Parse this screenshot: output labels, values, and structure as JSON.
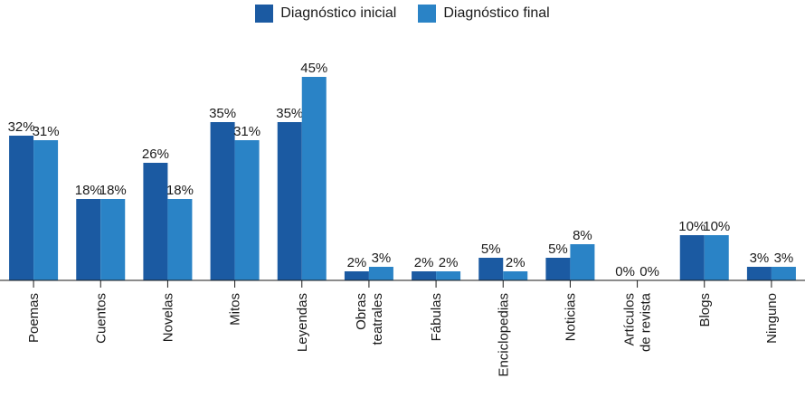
{
  "colors": {
    "initial": "#1b5aa2",
    "final": "#2a83c6",
    "axis": "#1a1a1a"
  },
  "legend": {
    "initial_label": "Diagnóstico inicial",
    "final_label": "Diagnóstico final"
  },
  "chart_data": {
    "type": "bar",
    "categories": [
      [
        "Poemas"
      ],
      [
        "Cuentos"
      ],
      [
        "Novelas"
      ],
      [
        "Mitos"
      ],
      [
        "Leyendas"
      ],
      [
        "Obras",
        "teatrales"
      ],
      [
        "Fábulas"
      ],
      [
        "Enciclopedias"
      ],
      [
        "Noticias"
      ],
      [
        "Artículos",
        "de revista"
      ],
      [
        "Blogs"
      ],
      [
        "Ninguno"
      ]
    ],
    "series": [
      {
        "name": "Diagnóstico inicial",
        "values": [
          32,
          18,
          26,
          35,
          35,
          2,
          2,
          5,
          5,
          0,
          10,
          3
        ]
      },
      {
        "name": "Diagnóstico final",
        "values": [
          31,
          18,
          18,
          31,
          45,
          3,
          2,
          2,
          8,
          0,
          10,
          3
        ]
      }
    ],
    "value_suffix": "%",
    "ylim": [
      0,
      50
    ],
    "legend_position": "top-center",
    "grid": false
  }
}
